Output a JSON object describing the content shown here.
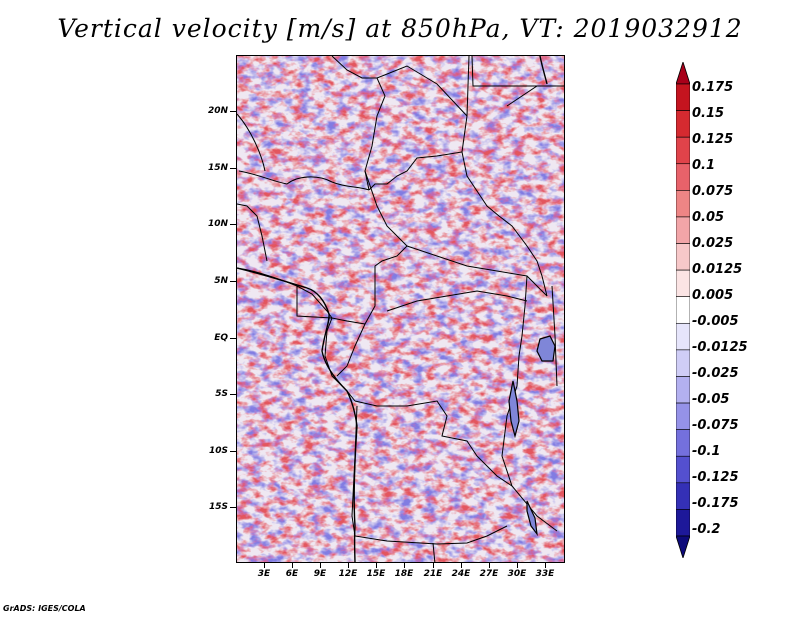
{
  "title": "Vertical velocity [m/s] at 850hPa, VT: 2019032912",
  "credit": "GrADS: IGES/COLA",
  "map": {
    "lat_labels": [
      "20N",
      "15N",
      "10N",
      "5N",
      "EQ",
      "5S",
      "10S",
      "15S"
    ],
    "lat_values": [
      20,
      15,
      10,
      5,
      0,
      -5,
      -10,
      -15
    ],
    "lon_labels": [
      "3E",
      "6E",
      "9E",
      "12E",
      "15E",
      "18E",
      "21E",
      "24E",
      "27E",
      "30E",
      "33E"
    ],
    "lon_values": [
      3,
      6,
      9,
      12,
      15,
      18,
      21,
      24,
      27,
      30,
      33
    ],
    "extent": {
      "lon_min": 0,
      "lon_max": 35,
      "lat_min": -20,
      "lat_max": 24.5
    },
    "field": "vertical velocity",
    "level": "850hPa",
    "valid_time": "2019032912"
  },
  "colorbar": {
    "labels": [
      "0.175",
      "0.15",
      "0.125",
      "0.1",
      "0.075",
      "0.05",
      "0.025",
      "0.0125",
      "0.005",
      "-0.005",
      "-0.0125",
      "-0.025",
      "-0.05",
      "-0.075",
      "-0.1",
      "-0.125",
      "-0.175",
      "-0.2"
    ],
    "colors": [
      "#a8001a",
      "#c4141f",
      "#d52a30",
      "#e0434a",
      "#e8626a",
      "#ee8585",
      "#f2a5a8",
      "#f7c8c9",
      "#fbe4e4",
      "#ffffff",
      "#e6e5fb",
      "#cfcdf6",
      "#b3b0f0",
      "#9592e8",
      "#7470dd",
      "#5450cf",
      "#3430b6",
      "#1d1899",
      "#0d0a7a"
    ]
  }
}
